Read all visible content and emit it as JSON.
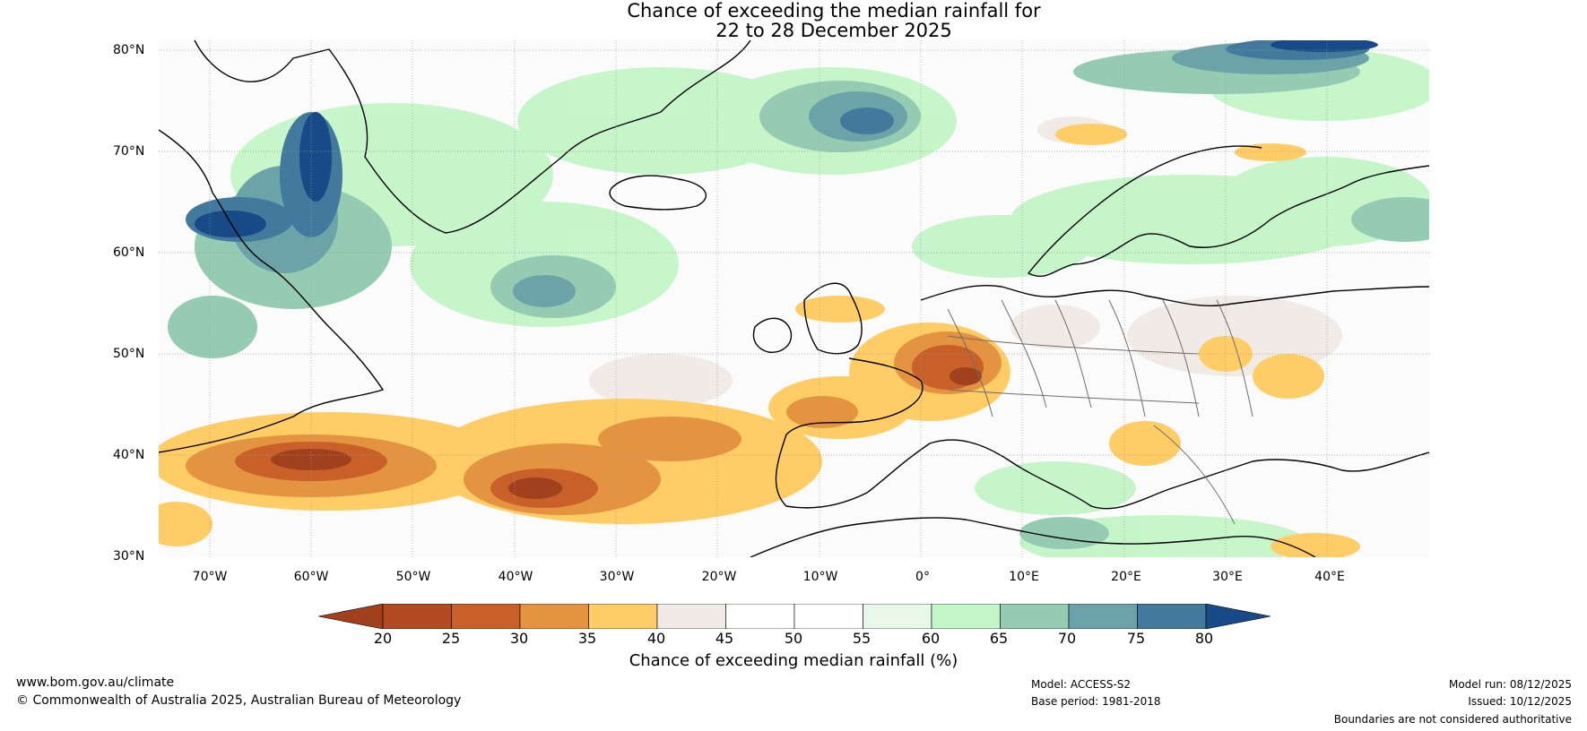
{
  "title": {
    "line1": "Chance of exceeding the median rainfall for",
    "line2": "22 to 28 December 2025"
  },
  "map": {
    "lat_labels": [
      "80°N",
      "70°N",
      "60°N",
      "50°N",
      "40°N",
      "30°N"
    ],
    "lon_labels": [
      "70°W",
      "60°W",
      "50°W",
      "40°W",
      "30°W",
      "20°W",
      "10°W",
      "0°",
      "10°E",
      "20°E",
      "30°E",
      "40°E"
    ],
    "extent": {
      "lon_min": -75,
      "lon_max": 50,
      "lat_min": 30,
      "lat_max": 81
    }
  },
  "colorbar": {
    "ticks": [
      "20",
      "25",
      "30",
      "35",
      "40",
      "45",
      "50",
      "55",
      "60",
      "65",
      "70",
      "75",
      "80"
    ],
    "colors": [
      "#a0401d",
      "#b24a24",
      "#c96029",
      "#e49341",
      "#ffcc66",
      "#f0ebe6",
      "#ffffff",
      "#ffffff",
      "#e9f7e9",
      "#c4f5c8",
      "#96cbb3",
      "#6ba3a8",
      "#44799e",
      "#174a86"
    ],
    "label": "Chance of exceeding median rainfall (%)"
  },
  "footer": {
    "website": "www.bom.gov.au/climate",
    "copyright": "© Commonwealth of Australia 2025, Australian Bureau of Meteorology",
    "model": "Model: ACCESS-S2",
    "base_period": "Base period: 1981-2018",
    "model_run": "Model run: 08/12/2025",
    "issued": "Issued: 10/12/2025",
    "disclaimer": "Boundaries are not considered authoritative"
  }
}
